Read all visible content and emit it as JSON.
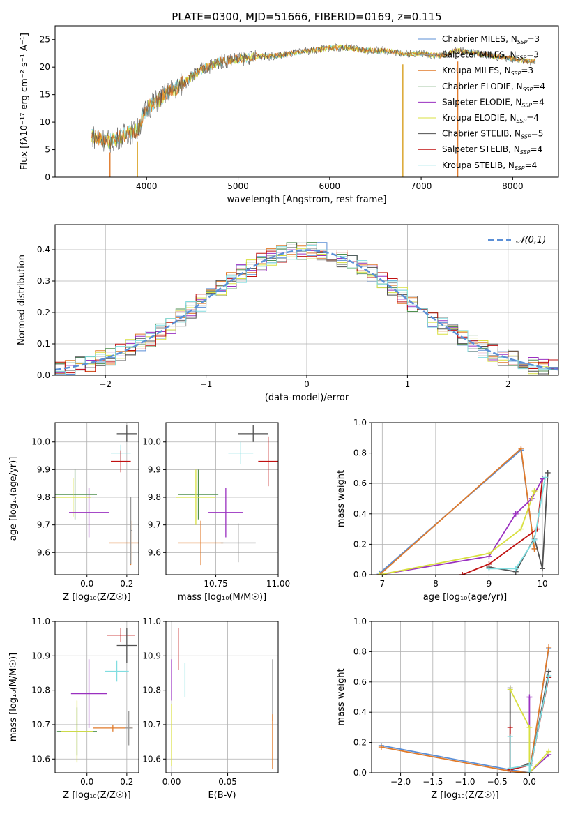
{
  "figure_title": "PLATE=0300, MJD=51666, FIBERID=0169, z=0.115",
  "colors": {
    "chabrier_miles": "#5b8fd6",
    "salpeter_miles": "#9a9a9a",
    "kroupa_miles": "#e07a2a",
    "chabrier_elodie": "#4f8f4f",
    "salpeter_elodie": "#9a30c0",
    "kroupa_elodie": "#d8e040",
    "chabrier_stelib": "#505050",
    "salpeter_stelib": "#c01010",
    "kroupa_stelib": "#80dde0"
  },
  "chart_data": [
    {
      "type": "line",
      "title": "PLATE=0300, MJD=51666, FIBERID=0169, z=0.115",
      "xlabel": "wavelength [Angstrom, rest frame]",
      "ylabel": "Flux [fλ10⁻¹⁷ erg cm⁻² s⁻¹ A⁻¹]",
      "xlim": [
        3000,
        8500
      ],
      "ylim": [
        0,
        27.5
      ],
      "xticks": [
        "4000",
        "5000",
        "6000",
        "7000",
        "8000"
      ],
      "yticks": [
        "0",
        "5",
        "10",
        "15",
        "20",
        "25"
      ],
      "grid": false,
      "legend_position": "right",
      "legend": [
        "Chabrier MILES, N_SSP=3",
        "Salpeter MILES, N_SSP=3",
        "Kroupa MILES, N_SSP=3",
        "Chabrier ELODIE, N_SSP=4",
        "Salpeter ELODIE, N_SSP=4",
        "Kroupa ELODIE, N_SSP=4",
        "Chabrier STELIB, N_SSP=5",
        "Salpeter STELIB, N_SSP=4",
        "Kroupa STELIB, N_SSP=4"
      ],
      "continuum": {
        "x": [
          3400,
          3600,
          3800,
          3900,
          4000,
          4200,
          4400,
          4600,
          4800,
          5000,
          5200,
          5400,
          5600,
          5800,
          6000,
          6200,
          6400,
          6600,
          6800,
          7000,
          7200,
          7400,
          7600,
          8000,
          8200
        ],
        "y": [
          7.5,
          6.5,
          8,
          8.5,
          12.5,
          15,
          17,
          19.5,
          21,
          21.5,
          22,
          22,
          22.5,
          23,
          23.5,
          23.5,
          23,
          23,
          22.5,
          22.5,
          22,
          23,
          22.5,
          21.5,
          21
        ]
      }
    },
    {
      "type": "histogram",
      "xlabel": "(data-model)/error",
      "ylabel": "Normed distribution",
      "xlim": [
        -2.5,
        2.5
      ],
      "ylim": [
        0,
        0.48
      ],
      "xticks": [
        "−2",
        "−1",
        "0",
        "1",
        "2"
      ],
      "yticks": [
        "0.0",
        "0.1",
        "0.2",
        "0.3",
        "0.4"
      ],
      "grid": true,
      "legend_position": "top-right",
      "legend": [
        "𝒩(0,1)"
      ],
      "reference_curve": "gaussian, mean 0, sigma 1"
    },
    {
      "type": "scatter",
      "xlabel": "Z [log₁₀(Z/Z☉)]",
      "ylabel": "age  [log₁₀(age/yr)]",
      "xlim": [
        -0.16,
        0.26
      ],
      "ylim": [
        9.52,
        10.07
      ],
      "xticks": [
        "0.0",
        "0.2"
      ],
      "yticks": [
        "9.6",
        "9.7",
        "9.8",
        "9.9",
        "10.0"
      ],
      "grid": true,
      "errorbars": [
        {
          "model": "chabrier_stelib",
          "x": 0.2,
          "y": 10.03,
          "xerr": 0.05,
          "yerr": 0.03
        },
        {
          "model": "kroupa_stelib",
          "x": 0.17,
          "y": 9.96,
          "xerr": 0.05,
          "yerr": 0.03
        },
        {
          "model": "salpeter_stelib",
          "x": 0.17,
          "y": 9.93,
          "xerr": 0.05,
          "yerr": 0.04
        },
        {
          "model": "chabrier_elodie",
          "x": -0.06,
          "y": 9.81,
          "xerr": 0.11,
          "yerr": 0.09
        },
        {
          "model": "kroupa_elodie",
          "x": -0.07,
          "y": 9.8,
          "xerr": 0.09,
          "yerr": 0.07
        },
        {
          "model": "salpeter_elodie",
          "x": 0.01,
          "y": 9.745,
          "xerr": 0.1,
          "yerr": 0.09
        },
        {
          "model": "kroupa_miles",
          "x": 0.22,
          "y": 9.635,
          "xerr": 0.11,
          "yerr": 0.08
        },
        {
          "model": "salpeter_miles",
          "x": 0.22,
          "y": 9.68,
          "xerr": 0.005,
          "yerr": 0.12
        }
      ]
    },
    {
      "type": "scatter",
      "xlabel": "mass [log₁₀(M/M☉)]",
      "xlim": [
        10.55,
        11.0
      ],
      "ylim": [
        9.52,
        10.07
      ],
      "xticks": [
        "10.75",
        "11.00"
      ],
      "yticks": [
        "9.6",
        "9.7",
        "9.8",
        "9.9",
        "10.0"
      ],
      "grid": true,
      "errorbars": [
        {
          "model": "chabrier_stelib",
          "x": 10.9,
          "y": 10.03,
          "xerr": 0.06,
          "yerr": 0.03
        },
        {
          "model": "kroupa_stelib",
          "x": 10.85,
          "y": 9.96,
          "xerr": 0.05,
          "yerr": 0.04
        },
        {
          "model": "salpeter_stelib",
          "x": 10.96,
          "y": 9.93,
          "xerr": 0.04,
          "yerr": 0.09
        },
        {
          "model": "chabrier_elodie",
          "x": 10.68,
          "y": 9.81,
          "xerr": 0.08,
          "yerr": 0.09
        },
        {
          "model": "kroupa_elodie",
          "x": 10.67,
          "y": 9.8,
          "xerr": 0.08,
          "yerr": 0.1
        },
        {
          "model": "salpeter_elodie",
          "x": 10.79,
          "y": 9.745,
          "xerr": 0.07,
          "yerr": 0.09
        },
        {
          "model": "kroupa_miles",
          "x": 10.69,
          "y": 9.635,
          "xerr": 0.09,
          "yerr": 0.08
        },
        {
          "model": "salpeter_miles",
          "x": 10.84,
          "y": 9.635,
          "xerr": 0.07,
          "yerr": 0.07
        }
      ]
    },
    {
      "type": "line",
      "xlabel": "age  [log₁₀(age/yr)]",
      "ylabel": "mass weight",
      "xlim": [
        6.8,
        10.3
      ],
      "ylim": [
        0,
        1.0
      ],
      "xticks": [
        "7",
        "8",
        "9",
        "10"
      ],
      "yticks": [
        "0.0",
        "0.2",
        "0.4",
        "0.6",
        "0.8",
        "1.0"
      ],
      "grid": true,
      "series": [
        {
          "model": "chabrier_miles",
          "x": [
            6.95,
            9.6,
            9.85
          ],
          "y": [
            0.01,
            0.82,
            0.17
          ]
        },
        {
          "model": "kroupa_miles",
          "x": [
            6.95,
            9.6,
            9.85
          ],
          "y": [
            0.0,
            0.83,
            0.17
          ]
        },
        {
          "model": "chabrier_stelib",
          "x": [
            9.0,
            9.5,
            9.85,
            10.0,
            10.1
          ],
          "y": [
            0.05,
            0.02,
            0.24,
            0.04,
            0.67
          ]
        },
        {
          "model": "salpeter_stelib",
          "x": [
            8.5,
            9.0,
            9.9,
            10.0
          ],
          "y": [
            0.0,
            0.07,
            0.3,
            0.63
          ]
        },
        {
          "model": "salpeter_elodie",
          "x": [
            6.95,
            9.0,
            9.5,
            9.8,
            10.0
          ],
          "y": [
            0.0,
            0.12,
            0.4,
            0.5,
            0.63
          ]
        },
        {
          "model": "kroupa_elodie",
          "x": [
            6.95,
            9.0,
            9.6,
            9.85
          ],
          "y": [
            0.0,
            0.14,
            0.3,
            0.55
          ]
        },
        {
          "model": "kroupa_stelib",
          "x": [
            9.0,
            9.5,
            9.85,
            10.05
          ],
          "y": [
            0.04,
            0.04,
            0.23,
            0.64
          ]
        }
      ]
    },
    {
      "type": "scatter",
      "xlabel": "Z [log₁₀(Z/Z☉)]",
      "ylabel": "mass [log₁₀(M/M☉)]",
      "xlim": [
        -0.16,
        0.26
      ],
      "ylim": [
        10.56,
        11.0
      ],
      "xticks": [
        "0.0",
        "0.2"
      ],
      "yticks": [
        "10.6",
        "10.7",
        "10.8",
        "10.9",
        "11.0"
      ],
      "grid": true,
      "errorbars": [
        {
          "model": "salpeter_stelib",
          "x": 0.17,
          "y": 10.96,
          "xerr": 0.07,
          "yerr": 0.02
        },
        {
          "model": "chabrier_stelib",
          "x": 0.2,
          "y": 10.93,
          "xerr": 0.05,
          "yerr": 0.05
        },
        {
          "model": "kroupa_stelib",
          "x": 0.15,
          "y": 10.855,
          "xerr": 0.06,
          "yerr": 0.03
        },
        {
          "model": "salpeter_elodie",
          "x": 0.01,
          "y": 10.79,
          "xerr": 0.09,
          "yerr": 0.1
        },
        {
          "model": "chabrier_elodie",
          "x": -0.05,
          "y": 10.68,
          "xerr": 0.1,
          "yerr": 0.07
        },
        {
          "model": "kroupa_elodie",
          "x": -0.05,
          "y": 10.68,
          "xerr": 0.08,
          "yerr": 0.09
        },
        {
          "model": "kroupa_miles",
          "x": 0.13,
          "y": 10.69,
          "xerr": 0.1,
          "yerr": 0.01
        },
        {
          "model": "salpeter_miles",
          "x": 0.21,
          "y": 10.69,
          "xerr": 0.02,
          "yerr": 0.05
        }
      ]
    },
    {
      "type": "scatter",
      "xlabel": "E(B-V)",
      "xlim": [
        -0.005,
        0.095
      ],
      "ylim": [
        10.56,
        11.0
      ],
      "xticks": [
        "0.00",
        "0.05"
      ],
      "yticks": [
        "10.6",
        "10.7",
        "10.8",
        "10.9",
        "11.0"
      ],
      "grid": true,
      "errorbars": [
        {
          "model": "salpeter_stelib",
          "x": 0.006,
          "y": 10.92,
          "xerr": 0.0,
          "yerr": 0.06
        },
        {
          "model": "kroupa_stelib",
          "x": 0.012,
          "y": 10.83,
          "xerr": 0.0,
          "yerr": 0.05
        },
        {
          "model": "salpeter_elodie",
          "x": 0.0,
          "y": 10.83,
          "xerr": 0.0,
          "yerr": 0.06
        },
        {
          "model": "kroupa_elodie",
          "x": 0.0,
          "y": 10.67,
          "xerr": 0.0,
          "yerr": 0.09
        },
        {
          "model": "salpeter_miles",
          "x": 0.09,
          "y": 10.8,
          "xerr": 0.0,
          "yerr": 0.09
        },
        {
          "model": "kroupa_miles",
          "x": 0.09,
          "y": 10.65,
          "xerr": 0.0,
          "yerr": 0.08
        }
      ]
    },
    {
      "type": "line",
      "xlabel": "Z [log₁₀(Z/Z☉)]",
      "ylabel": "mass weight",
      "xlim": [
        -2.45,
        0.45
      ],
      "ylim": [
        0,
        1.0
      ],
      "xticks": [
        "−2.0",
        "−1.5",
        "−1.0",
        "−0.5",
        "0.0"
      ],
      "yticks": [
        "0.0",
        "0.2",
        "0.4",
        "0.6",
        "0.8",
        "1.0"
      ],
      "grid": true,
      "series": [
        {
          "model": "chabrier_miles",
          "x": [
            -2.3,
            -0.3,
            0.0,
            0.3
          ],
          "y": [
            0.18,
            0.02,
            0.0,
            0.82
          ]
        },
        {
          "model": "kroupa_miles",
          "x": [
            -2.3,
            -0.3,
            0.0,
            0.3
          ],
          "y": [
            0.17,
            0.01,
            0.0,
            0.83
          ]
        },
        {
          "model": "chabrier_stelib",
          "x": [
            -0.3,
            -0.3,
            0.0,
            0.0,
            0.3
          ],
          "y": [
            0.56,
            0.02,
            0.06,
            0.0,
            0.67
          ]
        },
        {
          "model": "salpeter_stelib",
          "x": [
            -0.3,
            -0.3,
            0.0,
            0.0,
            0.3
          ],
          "y": [
            0.3,
            0.02,
            0.05,
            0.0,
            0.63
          ]
        },
        {
          "model": "salpeter_elodie",
          "x": [
            0.0,
            0.0,
            0.3
          ],
          "y": [
            0.5,
            0.0,
            0.12
          ]
        },
        {
          "model": "kroupa_elodie",
          "x": [
            -0.3,
            0.0,
            0.0,
            0.3
          ],
          "y": [
            0.55,
            0.3,
            0.0,
            0.14
          ]
        },
        {
          "model": "kroupa_stelib",
          "x": [
            -0.3,
            -0.3,
            0.0,
            0.0,
            0.3
          ],
          "y": [
            0.24,
            0.03,
            0.05,
            0.0,
            0.64
          ]
        }
      ]
    }
  ]
}
